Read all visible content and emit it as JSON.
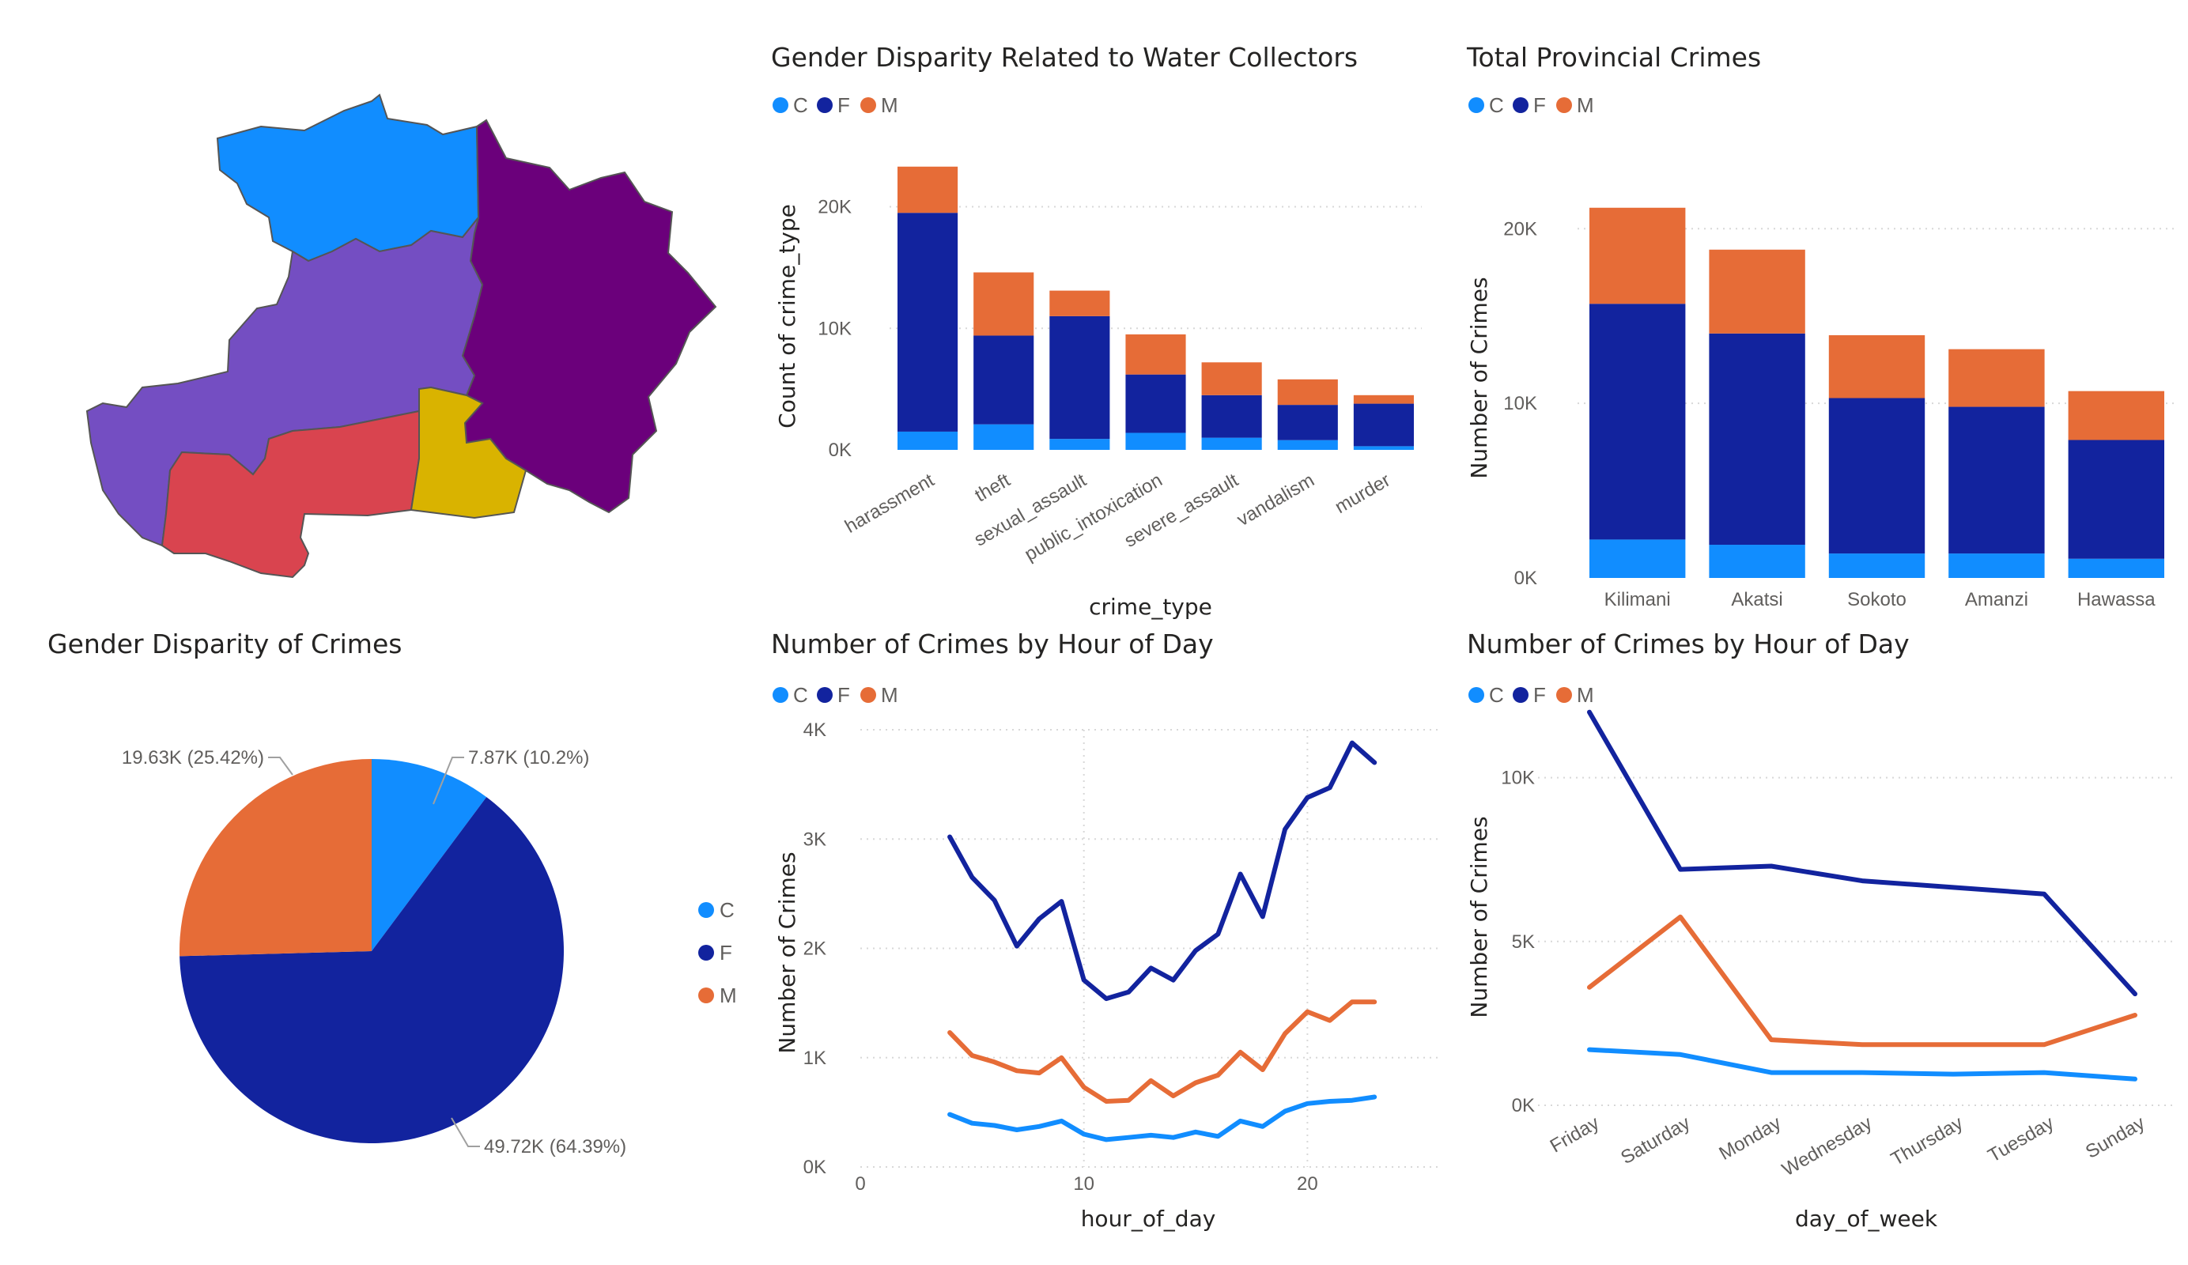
{
  "colors": {
    "C": "#118dff",
    "F": "#12239e",
    "M": "#e66c37"
  },
  "legend": {
    "c": "C",
    "f": "F",
    "m": "M"
  },
  "map": {
    "regions": [
      {
        "name": "region-north",
        "color": "#118dff"
      },
      {
        "name": "region-west",
        "color": "#744ec2"
      },
      {
        "name": "region-east",
        "color": "#6b007b"
      },
      {
        "name": "region-south",
        "color": "#d9444f"
      },
      {
        "name": "region-center",
        "color": "#d9b300"
      }
    ]
  },
  "chart_data": [
    {
      "id": "water",
      "type": "bar",
      "stacked": true,
      "title": "Gender Disparity Related to Water Collectors",
      "xlabel": "crime_type",
      "ylabel": "Count of crime_type",
      "categories": [
        "harassment",
        "theft",
        "sexual_assault",
        "public_intoxication",
        "severe_assault",
        "vandalism",
        "murder"
      ],
      "series": [
        {
          "name": "C",
          "values": [
            1500,
            2100,
            900,
            1400,
            1000,
            800,
            300
          ]
        },
        {
          "name": "F",
          "values": [
            18000,
            7300,
            10100,
            4800,
            3500,
            2900,
            3500
          ]
        },
        {
          "name": "M",
          "values": [
            3800,
            5200,
            2100,
            3300,
            2700,
            2100,
            700
          ]
        }
      ],
      "yticks": [
        0,
        10000,
        20000
      ],
      "ytick_labels": [
        "0K",
        "10K",
        "20K"
      ],
      "ylim": [
        0,
        24000
      ],
      "legend_position": "top-left"
    },
    {
      "id": "province",
      "type": "bar",
      "stacked": true,
      "title": "Total Provincial Crimes",
      "xlabel": "",
      "ylabel": "Number of Crimes",
      "categories": [
        "Kilimani",
        "Akatsi",
        "Sokoto",
        "Amanzi",
        "Hawassa"
      ],
      "series": [
        {
          "name": "C",
          "values": [
            2200,
            1900,
            1400,
            1400,
            1100
          ]
        },
        {
          "name": "F",
          "values": [
            13500,
            12100,
            8900,
            8400,
            6800
          ]
        },
        {
          "name": "M",
          "values": [
            5500,
            4800,
            3600,
            3300,
            2800
          ]
        }
      ],
      "yticks": [
        0,
        10000,
        20000
      ],
      "ytick_labels": [
        "0K",
        "10K",
        "20K"
      ],
      "ylim": [
        0,
        23000
      ],
      "legend_position": "top-left"
    },
    {
      "id": "pie",
      "type": "pie",
      "title": "Gender Disparity of Crimes",
      "slices": [
        {
          "name": "C",
          "value": 7870,
          "label": "7.87K (10.2%)"
        },
        {
          "name": "F",
          "value": 49720,
          "label": "49.72K (64.39%)"
        },
        {
          "name": "M",
          "value": 19630,
          "label": "19.63K (25.42%)"
        }
      ],
      "legend_position": "right"
    },
    {
      "id": "hour",
      "type": "line",
      "title": "Number of Crimes by Hour of Day",
      "xlabel": "hour_of_day",
      "ylabel": "Number of Crimes",
      "x": [
        4,
        5,
        6,
        7,
        8,
        9,
        10,
        11,
        12,
        13,
        14,
        15,
        16,
        17,
        18,
        19,
        20,
        21,
        22,
        23
      ],
      "series": [
        {
          "name": "C",
          "values": [
            480,
            400,
            380,
            340,
            370,
            420,
            300,
            250,
            270,
            290,
            270,
            320,
            280,
            420,
            370,
            510,
            580,
            600,
            610,
            640
          ]
        },
        {
          "name": "F",
          "values": [
            3020,
            2650,
            2440,
            2020,
            2270,
            2430,
            1710,
            1540,
            1600,
            1820,
            1710,
            1980,
            2130,
            2680,
            2290,
            3090,
            3380,
            3470,
            3880,
            3700
          ]
        },
        {
          "name": "M",
          "values": [
            1230,
            1020,
            960,
            880,
            860,
            1000,
            730,
            600,
            610,
            790,
            650,
            770,
            840,
            1050,
            890,
            1220,
            1420,
            1340,
            1510,
            1510
          ]
        }
      ],
      "xticks": [
        0,
        10,
        20
      ],
      "yticks": [
        0,
        1000,
        2000,
        3000,
        4000
      ],
      "ytick_labels": [
        "0K",
        "1K",
        "2K",
        "3K",
        "4K"
      ],
      "xlim": [
        0,
        26
      ],
      "ylim": [
        0,
        4000
      ],
      "grid": true,
      "legend_position": "top-left"
    },
    {
      "id": "day",
      "type": "line",
      "title": "Number of Crimes by Hour of Day",
      "xlabel": "day_of_week",
      "ylabel": "Number of Crimes",
      "categories": [
        "Friday",
        "Saturday",
        "Monday",
        "Wednesday",
        "Thursday",
        "Tuesday",
        "Sunday"
      ],
      "series": [
        {
          "name": "C",
          "values": [
            1700,
            1550,
            1000,
            1000,
            950,
            1000,
            800
          ]
        },
        {
          "name": "F",
          "values": [
            12000,
            7200,
            7300,
            6850,
            6650,
            6450,
            3400
          ]
        },
        {
          "name": "M",
          "values": [
            3600,
            5750,
            2000,
            1850,
            1850,
            1850,
            2750
          ]
        }
      ],
      "yticks": [
        0,
        5000,
        10000
      ],
      "ytick_labels": [
        "0K",
        "5K",
        "10K"
      ],
      "ylim": [
        0,
        12500
      ],
      "grid": true,
      "legend_position": "top-left"
    }
  ]
}
